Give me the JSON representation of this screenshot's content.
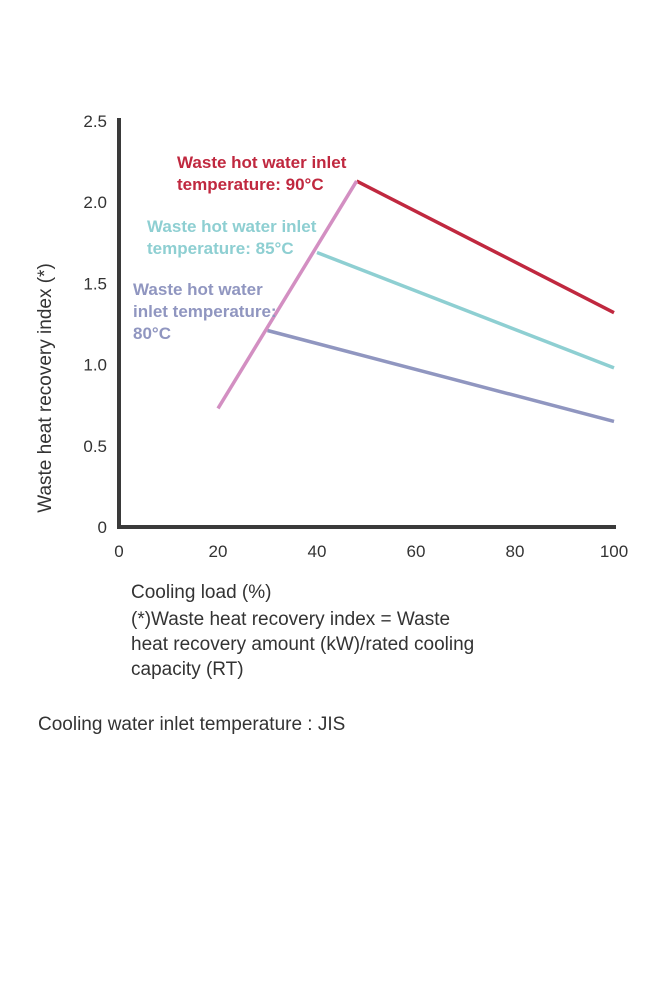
{
  "chart_data": {
    "type": "line",
    "ylabel": "Waste heat recovery index (*)",
    "xlabel": "Cooling load (%)",
    "xlim": [
      0,
      100
    ],
    "ylim": [
      0,
      2.5
    ],
    "x_ticks": [
      "0",
      "20",
      "40",
      "60",
      "80",
      "100"
    ],
    "y_ticks": [
      "0",
      "0.5",
      "1.0",
      "1.5",
      "2.0",
      "2.5"
    ],
    "grid": false,
    "series": [
      {
        "name": [
          "Waste hot water inlet",
          "temperature: 90°C"
        ],
        "color": "#c0283f",
        "points": [
          [
            48,
            2.13
          ],
          [
            100,
            1.32
          ]
        ]
      },
      {
        "name": [
          "Waste hot water inlet",
          "temperature: 85°C"
        ],
        "color": "#8ecfd2",
        "points": [
          [
            40,
            1.69
          ],
          [
            100,
            0.98
          ]
        ]
      },
      {
        "name": [
          "Waste hot water",
          "inlet temperature:",
          "80°C"
        ],
        "color": "#9096c0",
        "points": [
          [
            30,
            1.21
          ],
          [
            100,
            0.65
          ]
        ]
      },
      {
        "name": "",
        "color": "#d38fc2",
        "points": [
          [
            20,
            0.73
          ],
          [
            48,
            2.13
          ]
        ]
      }
    ]
  },
  "footnote_lines": [
    "(*)Waste heat recovery index = Waste",
    "heat recovery amount (kW)/rated cooling",
    "capacity (RT)"
  ],
  "condition": "Cooling water inlet temperature : JIS"
}
